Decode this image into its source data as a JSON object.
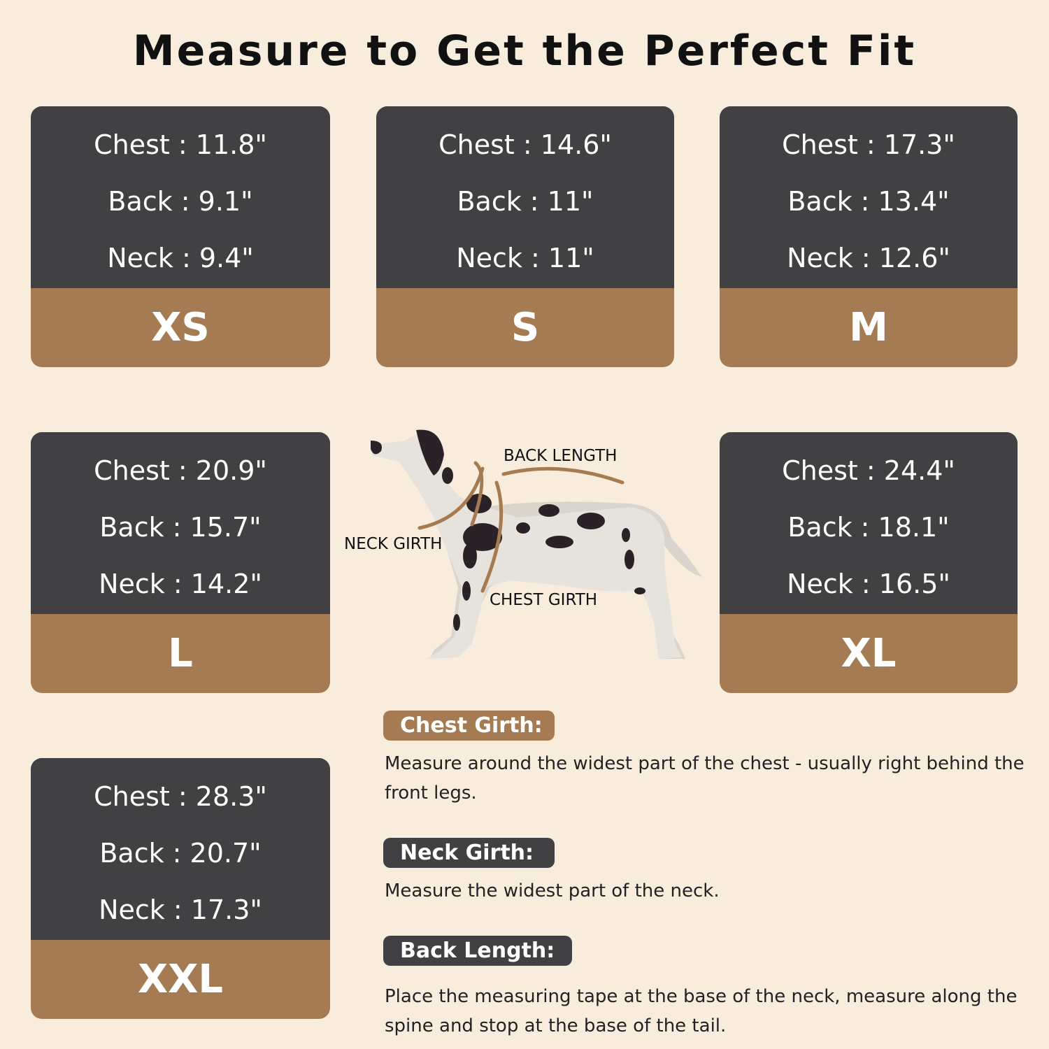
{
  "title": "Measure to Get the Perfect Fit",
  "sizes": [
    {
      "size": "XS",
      "chest": "Chest : 11.8\"",
      "back": "Back : 9.1\"",
      "neck": "Neck : 9.4\""
    },
    {
      "size": "S",
      "chest": "Chest : 14.6\"",
      "back": "Back : 11\"",
      "neck": "Neck : 11\""
    },
    {
      "size": "M",
      "chest": "Chest : 17.3\"",
      "back": "Back : 13.4\"",
      "neck": "Neck : 12.6\""
    },
    {
      "size": "L",
      "chest": "Chest : 20.9\"",
      "back": "Back : 15.7\"",
      "neck": "Neck : 14.2\""
    },
    {
      "size": "XL",
      "chest": "Chest : 24.4\"",
      "back": "Back : 18.1\"",
      "neck": "Neck : 16.5\""
    },
    {
      "size": "XXL",
      "chest": "Chest : 28.3\"",
      "back": "Back : 20.7\"",
      "neck": "Neck : 17.3\""
    }
  ],
  "diagram": {
    "back_length": "BACK LENGTH",
    "neck_girth": "NECK GIRTH",
    "chest_girth": "CHEST GIRTH"
  },
  "instructions": [
    {
      "label": "Chest Girth:",
      "text": "Measure around the widest part of the chest - usually right behind the front legs."
    },
    {
      "label": "Neck Girth:",
      "text": "Measure the widest part of the neck."
    },
    {
      "label": "Back Length:",
      "text": "Place the measuring tape at the base of the neck, measure along the spine and stop at the base of the tail."
    }
  ],
  "colors": {
    "background": "#f8eddc",
    "card_dark": "#414042",
    "accent_brown": "#a47b52"
  }
}
